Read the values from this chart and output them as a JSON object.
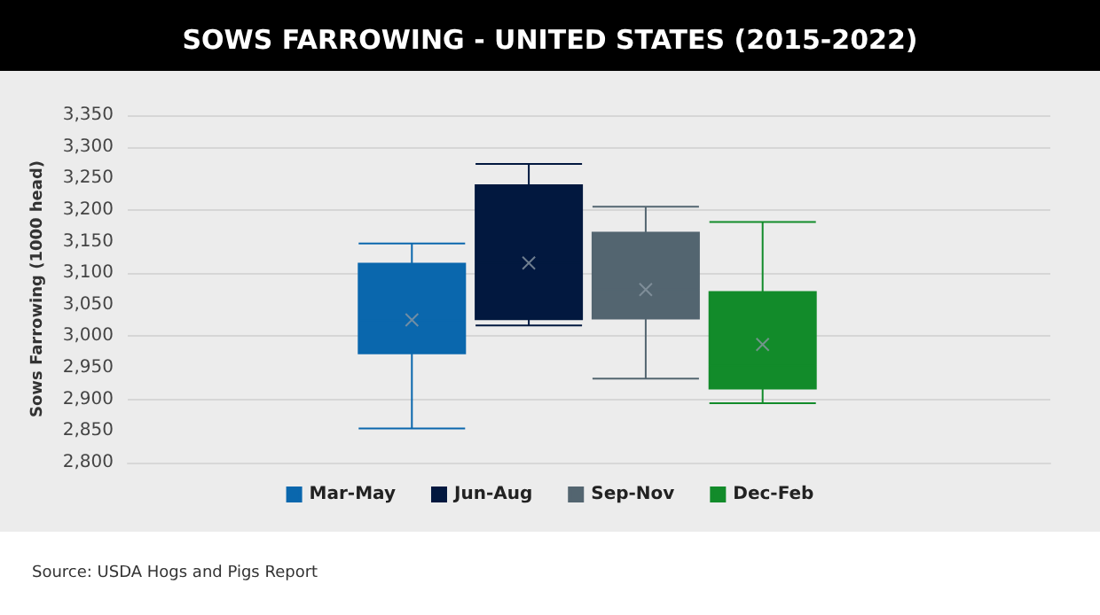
{
  "chart_data": {
    "type": "box",
    "title": "SOWS FARROWING - UNITED STATES (2015-2022)",
    "ylabel": "Sows Farrowing (1000 head)",
    "annotations": [
      "Source: USDA Hogs and Pigs Report"
    ],
    "categories": [
      null
    ],
    "series": [
      {
        "name": "Mar-May",
        "color": "#0a67ad",
        "boxes": [
          {
            "low": 2854,
            "q1": 2973,
            "median": 3025,
            "q3": 3115,
            "high": 3147,
            "mean": 3026
          }
        ]
      },
      {
        "name": "Jun-Aug",
        "color": "#02183f",
        "boxes": [
          {
            "low": 3017,
            "q1": 3027,
            "median": 3116,
            "q3": 3239,
            "high": 3273,
            "mean": 3116
          }
        ]
      },
      {
        "name": "Sep-Nov",
        "color": "#536570",
        "boxes": [
          {
            "low": 2933,
            "q1": 3028,
            "median": 3074,
            "q3": 3164,
            "high": 3205,
            "mean": 3074
          }
        ]
      },
      {
        "name": "Dec-Feb",
        "color": "#128b2a",
        "boxes": [
          {
            "low": 2894,
            "q1": 2917,
            "median": 2954,
            "q3": 3070,
            "high": 3181,
            "mean": 2987
          }
        ]
      }
    ],
    "ylim": [
      2800,
      3350
    ],
    "yticks": [
      {
        "value": 2800,
        "label": "2,800"
      },
      {
        "value": 2850,
        "label": "2,850"
      },
      {
        "value": 2900,
        "label": "2,900"
      },
      {
        "value": 2950,
        "label": "2,950"
      },
      {
        "value": 3000,
        "label": "3,000"
      },
      {
        "value": 3050,
        "label": "3,050"
      },
      {
        "value": 3100,
        "label": "3,100"
      },
      {
        "value": 3150,
        "label": "3,150"
      },
      {
        "value": 3200,
        "label": "3,200"
      },
      {
        "value": 3250,
        "label": "3,250"
      },
      {
        "value": 3300,
        "label": "3,300"
      },
      {
        "value": 3350,
        "label": "3,350"
      }
    ],
    "grid": "y",
    "legend": "bottom"
  }
}
